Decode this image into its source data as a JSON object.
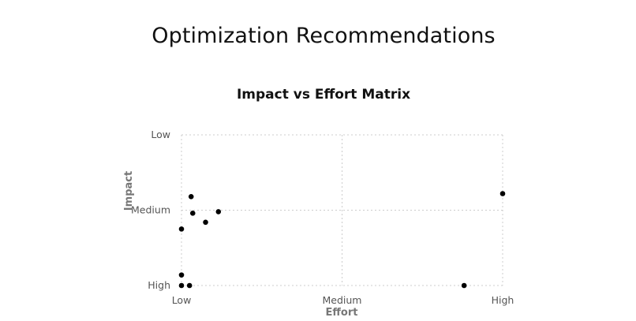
{
  "page": {
    "heading": "Optimization Recommendations"
  },
  "chart_data": {
    "type": "scatter",
    "title": "Impact vs Effort Matrix",
    "xlabel": "Effort",
    "ylabel": "Impact",
    "x_ticks": [
      "Low",
      "Medium",
      "High"
    ],
    "y_ticks": [
      "Low",
      "Medium",
      "High"
    ],
    "xlim": [
      0,
      2
    ],
    "ylim": [
      0,
      2
    ],
    "x_orientation": "Low at left, High at right",
    "y_orientation": "Low at top, High at bottom",
    "grid": true,
    "marker_color": "#000000",
    "points": [
      {
        "x": 0.06,
        "y": 0.82
      },
      {
        "x": 0.07,
        "y": 1.04
      },
      {
        "x": 0.23,
        "y": 1.02
      },
      {
        "x": 0.15,
        "y": 1.16
      },
      {
        "x": 0.0,
        "y": 1.25
      },
      {
        "x": 0.0,
        "y": 1.86
      },
      {
        "x": 0.0,
        "y": 2.0
      },
      {
        "x": 0.05,
        "y": 2.0
      },
      {
        "x": 1.76,
        "y": 2.0
      },
      {
        "x": 2.0,
        "y": 0.78
      }
    ]
  }
}
